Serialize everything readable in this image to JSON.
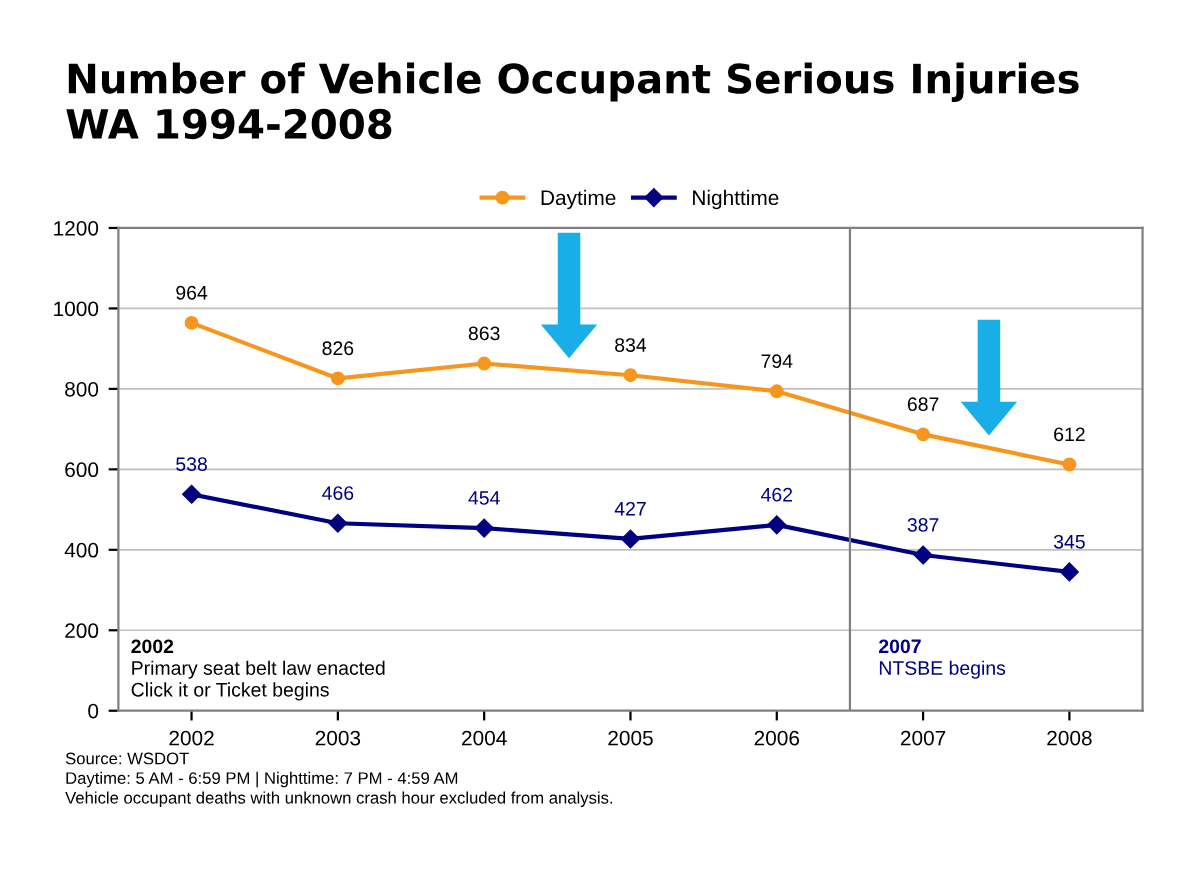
{
  "chart_data": {
    "type": "line",
    "title": "Number of Vehicle Occupant Serious Injuries\nWA 1994-2008",
    "x": [
      2002,
      2003,
      2004,
      2005,
      2006,
      2007,
      2008
    ],
    "series": [
      {
        "name": "Daytime",
        "color": "#f7961e",
        "marker": "circle",
        "values": [
          964,
          826,
          863,
          834,
          794,
          687,
          612
        ]
      },
      {
        "name": "Nighttime",
        "color": "#000080",
        "marker": "diamond",
        "values": [
          538,
          466,
          454,
          427,
          462,
          387,
          345
        ]
      }
    ],
    "xlim": [
      2001.5,
      2008.5
    ],
    "xticks": [
      2002,
      2003,
      2004,
      2005,
      2006,
      2007,
      2008
    ],
    "ylim": [
      0,
      1200
    ],
    "yticks": [
      0,
      200,
      400,
      600,
      800,
      1000,
      1200
    ],
    "grid": "y",
    "legend": "top",
    "data_labels": true,
    "ref_lines": [
      {
        "axis": "x",
        "value": 2006.5,
        "color": "#808080"
      }
    ],
    "annotations": [
      "2002",
      "Primary seat belt law enacted",
      "Click it or Ticket begins",
      "2007",
      "NTSBE begins",
      "Source: WSDOT",
      "Daytime: 5 AM - 6:59 PM | Nighttime: 7 PM - 4:59 AM",
      "Vehicle occupant deaths with unknown crash hour excluded from analysis."
    ]
  }
}
